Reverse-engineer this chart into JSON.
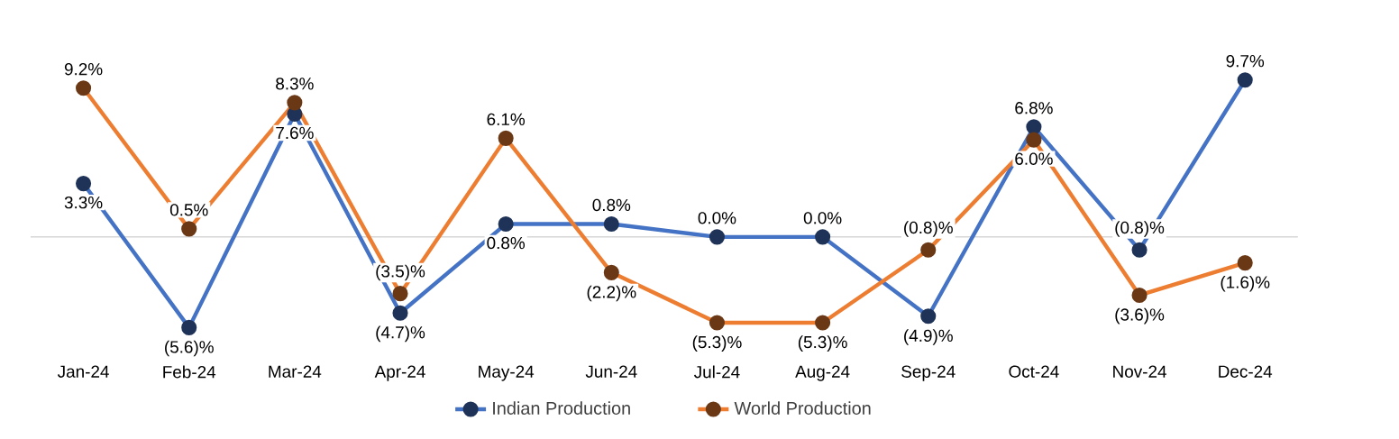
{
  "chart_data": {
    "type": "line",
    "categories": [
      "Jan-24",
      "Feb-24",
      "Mar-24",
      "Apr-24",
      "May-24",
      "Jun-24",
      "Jul-24",
      "Aug-24",
      "Sep-24",
      "Oct-24",
      "Nov-24",
      "Dec-24"
    ],
    "series": [
      {
        "name": "Indian Production",
        "color": "#4472c4",
        "values": [
          3.3,
          -5.6,
          7.6,
          -4.7,
          0.8,
          0.8,
          0.0,
          0.0,
          -4.9,
          6.8,
          -0.8,
          9.7
        ],
        "value_labels": [
          "3.3%",
          "(5.6)%",
          "7.6%",
          "(4.7)%",
          "0.8%",
          "0.8%",
          "0.0%",
          "0.0%",
          "(4.9)%",
          "6.8%",
          "(0.8)%",
          "9.7%"
        ]
      },
      {
        "name": "World Production",
        "color": "#ed7d31",
        "values": [
          9.2,
          0.5,
          8.3,
          -3.5,
          6.1,
          -2.2,
          -5.3,
          -5.3,
          -0.8,
          6.0,
          -3.6,
          -1.6
        ],
        "value_labels": [
          "9.2%",
          "0.5%",
          "8.3%",
          "(3.5)%",
          "6.1%",
          "(2.2)%",
          "(5.3)%",
          "(5.3)%",
          "(0.8)%",
          "6.0%",
          "(3.6)%",
          "(1.6)%"
        ]
      }
    ],
    "marker": "circle",
    "legend": "bottom"
  }
}
